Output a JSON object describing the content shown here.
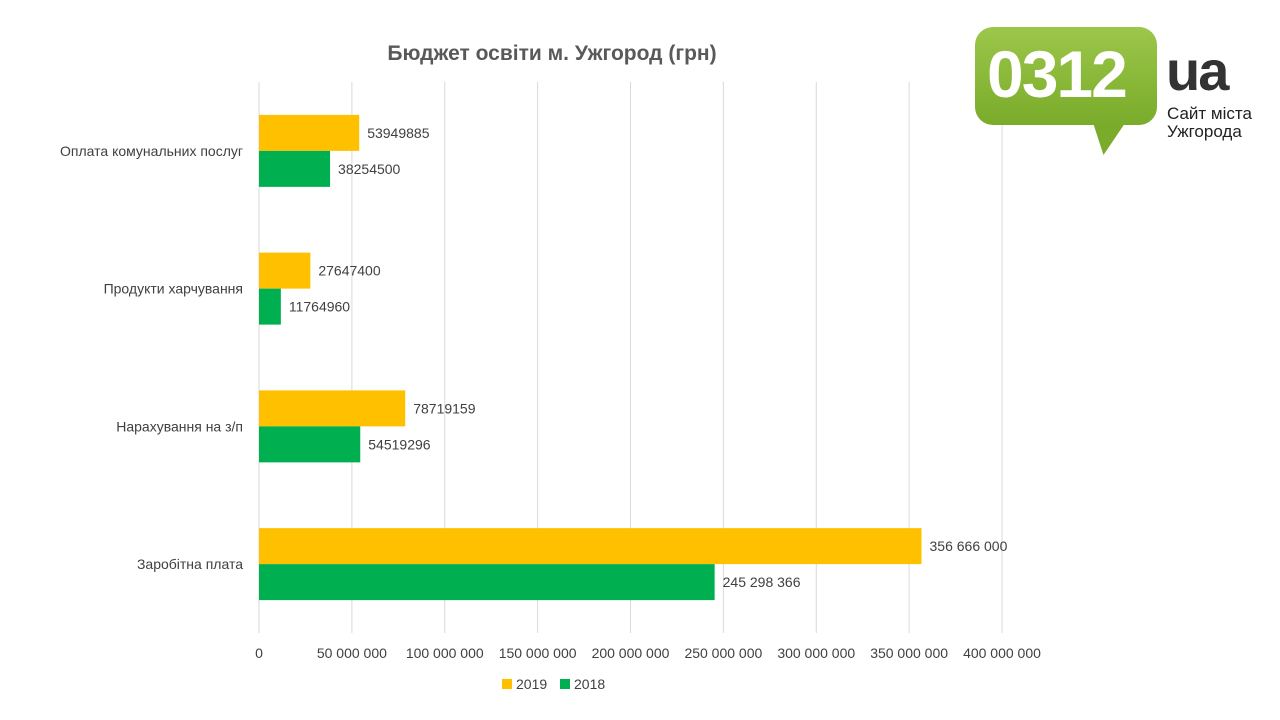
{
  "logo": {
    "number": "0312",
    "domain": "ua",
    "tagline_line1": "Сайт міста",
    "tagline_line2": "Ужгорода"
  },
  "chart_data": {
    "type": "bar",
    "orientation": "horizontal",
    "title": "Бюджет освіти м. Ужгород (грн)",
    "categories": [
      "Оплата комунальних послуг",
      "Продукти харчування",
      "Нарахування на з/п",
      "Заробітна плата"
    ],
    "series": [
      {
        "name": "2019",
        "color": "#ffc000",
        "values": [
          53949885,
          27647400,
          78719159,
          356666000
        ],
        "value_labels": [
          "53949885",
          "27647400",
          "78719159",
          "356 666 000"
        ]
      },
      {
        "name": "2018",
        "color": "#00b050",
        "values": [
          38254500,
          11764960,
          54519296,
          245298366
        ],
        "value_labels": [
          "38254500",
          "11764960",
          "54519296",
          "245 298 366"
        ]
      }
    ],
    "xlim": [
      0,
      400000000
    ],
    "xticks": [
      0,
      50000000,
      100000000,
      150000000,
      200000000,
      250000000,
      300000000,
      350000000,
      400000000
    ],
    "xtick_labels": [
      "0",
      "50 000 000",
      "100 000 000",
      "150 000 000",
      "200 000 000",
      "250 000 000",
      "300 000 000",
      "350 000 000",
      "400 000 000"
    ],
    "grid": true,
    "legend_position": "bottom"
  }
}
